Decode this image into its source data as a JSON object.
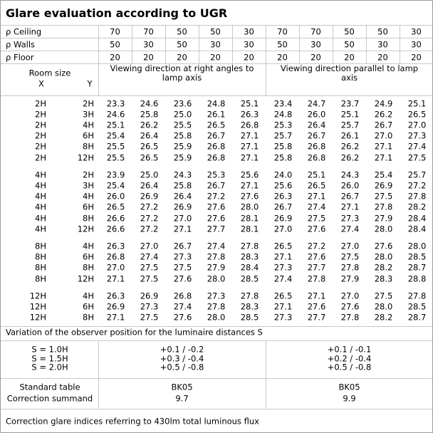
{
  "header": {
    "title": "Glare evaluation according to UGR"
  },
  "reflectances": [
    {
      "label": "ρ Ceiling",
      "values": [
        "70",
        "70",
        "50",
        "50",
        "30",
        "70",
        "70",
        "50",
        "50",
        "30"
      ]
    },
    {
      "label": "ρ Walls",
      "values": [
        "50",
        "30",
        "50",
        "30",
        "30",
        "50",
        "30",
        "50",
        "30",
        "30"
      ]
    },
    {
      "label": "ρ Floor",
      "values": [
        "20",
        "20",
        "20",
        "20",
        "20",
        "20",
        "20",
        "20",
        "20",
        "20"
      ]
    }
  ],
  "table_header": {
    "room_size": "Room size",
    "x": "X",
    "y": "Y",
    "crosswise": "Viewing direction at right angles to lamp axis",
    "endwise": "Viewing direction parallel to lamp axis"
  },
  "groups": [
    [
      {
        "x": "2H",
        "y": "2H",
        "values": [
          "23.3",
          "24.6",
          "23.6",
          "24.8",
          "25.1",
          "23.4",
          "24.7",
          "23.7",
          "24.9",
          "25.1"
        ]
      },
      {
        "x": "2H",
        "y": "3H",
        "values": [
          "24.6",
          "25.8",
          "25.0",
          "26.1",
          "26.3",
          "24.8",
          "26.0",
          "25.1",
          "26.2",
          "26.5"
        ]
      },
      {
        "x": "2H",
        "y": "4H",
        "values": [
          "25.1",
          "26.2",
          "25.5",
          "26.5",
          "26.8",
          "25.3",
          "26.4",
          "25.7",
          "26.7",
          "27.0"
        ]
      },
      {
        "x": "2H",
        "y": "6H",
        "values": [
          "25.4",
          "26.4",
          "25.8",
          "26.7",
          "27.1",
          "25.7",
          "26.7",
          "26.1",
          "27.0",
          "27.3"
        ]
      },
      {
        "x": "2H",
        "y": "8H",
        "values": [
          "25.5",
          "26.5",
          "25.9",
          "26.8",
          "27.1",
          "25.8",
          "26.8",
          "26.2",
          "27.1",
          "27.4"
        ]
      },
      {
        "x": "2H",
        "y": "12H",
        "values": [
          "25.5",
          "26.5",
          "25.9",
          "26.8",
          "27.1",
          "25.8",
          "26.8",
          "26.2",
          "27.1",
          "27.5"
        ]
      }
    ],
    [
      {
        "x": "4H",
        "y": "2H",
        "values": [
          "23.9",
          "25.0",
          "24.3",
          "25.3",
          "25.6",
          "24.0",
          "25.1",
          "24.3",
          "25.4",
          "25.7"
        ]
      },
      {
        "x": "4H",
        "y": "3H",
        "values": [
          "25.4",
          "26.4",
          "25.8",
          "26.7",
          "27.1",
          "25.6",
          "26.5",
          "26.0",
          "26.9",
          "27.2"
        ]
      },
      {
        "x": "4H",
        "y": "4H",
        "values": [
          "26.0",
          "26.9",
          "26.4",
          "27.2",
          "27.6",
          "26.3",
          "27.1",
          "26.7",
          "27.5",
          "27.8"
        ]
      },
      {
        "x": "4H",
        "y": "6H",
        "values": [
          "26.5",
          "27.2",
          "26.9",
          "27.6",
          "28.0",
          "26.7",
          "27.4",
          "27.1",
          "27.8",
          "28.2"
        ]
      },
      {
        "x": "4H",
        "y": "8H",
        "values": [
          "26.6",
          "27.2",
          "27.0",
          "27.6",
          "28.1",
          "26.9",
          "27.5",
          "27.3",
          "27.9",
          "28.4"
        ]
      },
      {
        "x": "4H",
        "y": "12H",
        "values": [
          "26.6",
          "27.2",
          "27.1",
          "27.7",
          "28.1",
          "27.0",
          "27.6",
          "27.4",
          "28.0",
          "28.4"
        ]
      }
    ],
    [
      {
        "x": "8H",
        "y": "4H",
        "values": [
          "26.3",
          "27.0",
          "26.7",
          "27.4",
          "27.8",
          "26.5",
          "27.2",
          "27.0",
          "27.6",
          "28.0"
        ]
      },
      {
        "x": "8H",
        "y": "6H",
        "values": [
          "26.8",
          "27.4",
          "27.3",
          "27.8",
          "28.3",
          "27.1",
          "27.6",
          "27.5",
          "28.0",
          "28.5"
        ]
      },
      {
        "x": "8H",
        "y": "8H",
        "values": [
          "27.0",
          "27.5",
          "27.5",
          "27.9",
          "28.4",
          "27.3",
          "27.7",
          "27.8",
          "28.2",
          "28.7"
        ]
      },
      {
        "x": "8H",
        "y": "12H",
        "values": [
          "27.1",
          "27.5",
          "27.6",
          "28.0",
          "28.5",
          "27.4",
          "27.8",
          "27.9",
          "28.3",
          "28.8"
        ]
      }
    ],
    [
      {
        "x": "12H",
        "y": "4H",
        "values": [
          "26.3",
          "26.9",
          "26.8",
          "27.3",
          "27.8",
          "26.5",
          "27.1",
          "27.0",
          "27.5",
          "27.8"
        ]
      },
      {
        "x": "12H",
        "y": "6H",
        "values": [
          "26.9",
          "27.3",
          "27.4",
          "27.8",
          "28.3",
          "27.1",
          "27.6",
          "27.6",
          "28.0",
          "28.5"
        ]
      },
      {
        "x": "12H",
        "y": "8H",
        "values": [
          "27.1",
          "27.5",
          "27.6",
          "28.0",
          "28.5",
          "27.3",
          "27.7",
          "27.8",
          "28.2",
          "28.7"
        ]
      }
    ]
  ],
  "variation": {
    "title": "Variation of the observer position for the luminaire distances S",
    "rows": [
      {
        "label": "S = 1.0H",
        "crosswise": "+0.1 / -0.2",
        "endwise": "+0.1 / -0.1"
      },
      {
        "label": "S = 1.5H",
        "crosswise": "+0.3 / -0.4",
        "endwise": "+0.2 / -0.4"
      },
      {
        "label": "S = 2.0H",
        "crosswise": "+0.5 / -0.8",
        "endwise": "+0.5 / -0.8"
      }
    ]
  },
  "standard": {
    "table_label": "Standard table",
    "table_crosswise": "BK05",
    "table_endwise": "BK05",
    "summand_label": "Correction summand",
    "summand_crosswise": "9.7",
    "summand_endwise": "9.9"
  },
  "footer": {
    "note": "Correction glare indices referring to 430lm total luminous flux"
  }
}
